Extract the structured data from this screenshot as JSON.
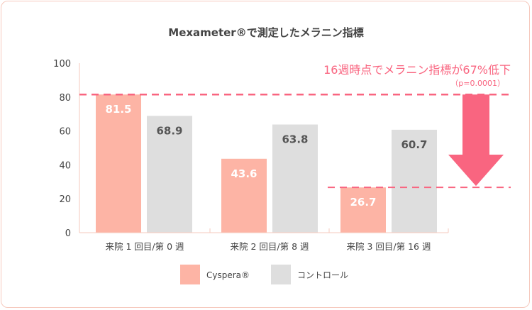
{
  "chart_data": {
    "type": "bar",
    "title": "Mexameter®で測定したメラニン指標",
    "categories": [
      "来院 1 回目/第 0 週",
      "来院 2 回目/第 8 週",
      "来院 3 回目/第 16 週"
    ],
    "series": [
      {
        "name": "Cyspera®",
        "values": [
          81.5,
          43.6,
          26.7
        ],
        "color": "#fdb4a5"
      },
      {
        "name": "コントロール",
        "values": [
          68.9,
          63.8,
          60.7
        ],
        "color": "#dedede"
      }
    ],
    "yticks": [
      0,
      20,
      40,
      60,
      80,
      100
    ],
    "ylim": [
      0,
      100
    ],
    "legend": "bottom",
    "reference_lines": [
      81.5,
      26.7
    ],
    "annotation": {
      "text": "16週時点でメラニン指標が67%低下",
      "subtext": "（p=0.0001）",
      "color": "#f96580"
    },
    "axis_color": "#f6c9bd"
  }
}
